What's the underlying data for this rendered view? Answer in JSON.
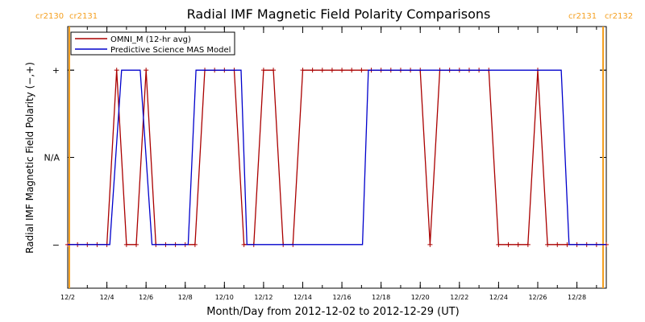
{
  "chart_data": {
    "type": "line",
    "title": "Radial IMF Magnetic Field Polarity Comparisons",
    "xlabel": "Month/Day from 2012-12-02 to 2012-12-29 (UT)",
    "ylabel": "Radial IMF Magnetic Field Polarity (−,+)",
    "x_unit": "day of December 2012 (UT)",
    "xlim": [
      2.0,
      29.5
    ],
    "ylim": [
      -1.5,
      1.5
    ],
    "x_ticks": [
      {
        "x": 2,
        "label": "12/2"
      },
      {
        "x": 4,
        "label": "12/4"
      },
      {
        "x": 6,
        "label": "12/6"
      },
      {
        "x": 8,
        "label": "12/8"
      },
      {
        "x": 10,
        "label": "12/10"
      },
      {
        "x": 12,
        "label": "12/12"
      },
      {
        "x": 14,
        "label": "12/14"
      },
      {
        "x": 16,
        "label": "12/16"
      },
      {
        "x": 18,
        "label": "12/18"
      },
      {
        "x": 20,
        "label": "12/20"
      },
      {
        "x": 22,
        "label": "12/22"
      },
      {
        "x": 24,
        "label": "12/24"
      },
      {
        "x": 26,
        "label": "12/26"
      },
      {
        "x": 28,
        "label": "12/28"
      }
    ],
    "y_ticks": [
      {
        "y": 1,
        "label": "+"
      },
      {
        "y": 0,
        "label": "N/A"
      },
      {
        "y": -1,
        "label": "−"
      }
    ],
    "carrington_markers": [
      {
        "x": 2.0,
        "labels": [
          "cr2130",
          "cr2131"
        ],
        "color": "#f5a020",
        "label_side": "left"
      },
      {
        "x": 29.5,
        "labels": [
          "cr2131",
          "cr2132"
        ],
        "color": "#f5a020",
        "label_side": "right"
      }
    ],
    "legend": {
      "position": "top-left"
    },
    "series": [
      {
        "name": "OMNI_M (12-hr avg)",
        "color": "#aa0000",
        "markers": true,
        "x": [
          2.0,
          2.5,
          3.0,
          3.5,
          4.0,
          4.5,
          5.0,
          5.5,
          6.0,
          6.5,
          7.0,
          7.5,
          8.0,
          8.5,
          9.0,
          9.5,
          10.0,
          10.5,
          11.0,
          11.5,
          12.0,
          12.5,
          13.0,
          13.5,
          14.0,
          14.5,
          15.0,
          15.5,
          16.0,
          16.5,
          17.0,
          17.5,
          18.0,
          18.5,
          19.0,
          19.5,
          20.0,
          20.5,
          21.0,
          21.5,
          22.0,
          22.5,
          23.0,
          23.5,
          24.0,
          24.5,
          25.0,
          25.5,
          26.0,
          26.5,
          27.0,
          27.5,
          28.0,
          28.5,
          29.0,
          29.5
        ],
        "y": [
          -1,
          -1,
          -1,
          -1,
          -1,
          1,
          -1,
          -1,
          1,
          -1,
          -1,
          -1,
          -1,
          -1,
          1,
          1,
          1,
          1,
          -1,
          -1,
          1,
          1,
          -1,
          -1,
          1,
          1,
          1,
          1,
          1,
          1,
          1,
          1,
          1,
          1,
          1,
          1,
          1,
          -1,
          1,
          1,
          1,
          1,
          1,
          1,
          -1,
          -1,
          -1,
          -1,
          1,
          -1,
          -1,
          -1,
          -1,
          -1,
          -1,
          -1
        ]
      },
      {
        "name": "Predictive Science MAS Model",
        "color": "#0000cc",
        "markers": false,
        "x": [
          2.0,
          4.15,
          4.75,
          5.7,
          6.3,
          6.8,
          8.15,
          8.55,
          10.85,
          11.15,
          17.05,
          17.35,
          27.2,
          27.6,
          29.5
        ],
        "y": [
          -1,
          -1,
          1,
          1,
          -1,
          -1,
          -1,
          1,
          1,
          -1,
          -1,
          1,
          1,
          -1,
          -1
        ]
      }
    ]
  }
}
